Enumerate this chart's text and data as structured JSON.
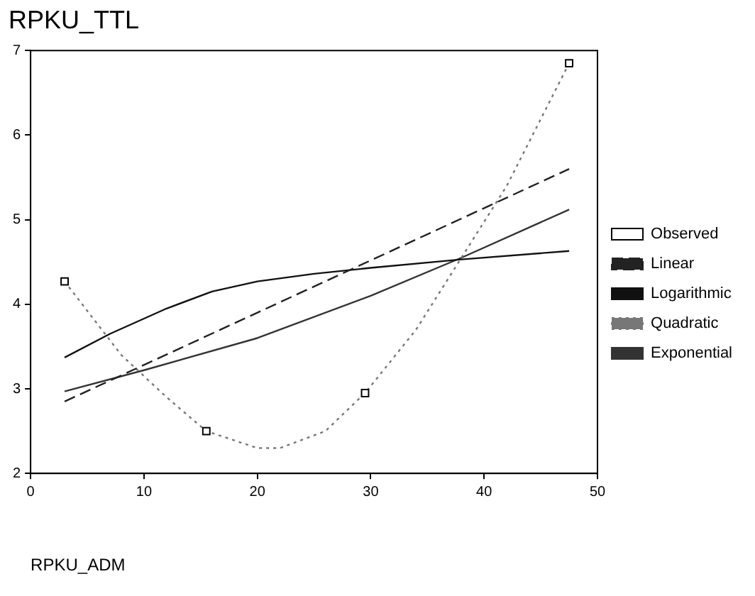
{
  "chart_data": {
    "type": "line",
    "title": "RPKU_TTL",
    "xlabel": "RPKU_ADM",
    "xlim": [
      0,
      50
    ],
    "xticks": [
      0,
      10,
      20,
      30,
      40,
      50
    ],
    "ylim": [
      2,
      7
    ],
    "yticks": [
      2,
      3,
      4,
      5,
      6,
      7
    ],
    "grid": false,
    "legend": "right",
    "series": [
      {
        "name": "Observed",
        "type": "scatter",
        "marker": "square",
        "color": "#000000",
        "x": [
          3,
          15.5,
          29.5,
          47.5
        ],
        "values": [
          4.27,
          2.5,
          2.95,
          6.85
        ]
      },
      {
        "name": "Linear",
        "type": "line",
        "marker": "none",
        "line_style": "dashed",
        "color": "#222222",
        "x": [
          3,
          47.5
        ],
        "values": [
          2.85,
          5.6
        ]
      },
      {
        "name": "Logarithmic",
        "type": "line",
        "marker": "none",
        "line_style": "solid",
        "color": "#111111",
        "x": [
          3,
          7,
          12,
          16,
          20,
          25,
          30,
          38,
          47.5
        ],
        "values": [
          3.37,
          3.65,
          3.95,
          4.15,
          4.27,
          4.36,
          4.43,
          4.53,
          4.63
        ]
      },
      {
        "name": "Quadratic",
        "type": "line",
        "marker": "none",
        "line_style": "dotted",
        "color": "#777777",
        "x": [
          3,
          8,
          12,
          15.5,
          20,
          22,
          26,
          29.5,
          34,
          38,
          42,
          47.5
        ],
        "values": [
          4.27,
          3.4,
          2.9,
          2.5,
          2.3,
          2.3,
          2.5,
          2.95,
          3.7,
          4.55,
          5.4,
          6.85
        ]
      },
      {
        "name": "Exponential",
        "type": "line",
        "marker": "none",
        "line_style": "solid",
        "color": "#333333",
        "x": [
          3,
          10,
          20,
          30,
          38,
          47.5
        ],
        "values": [
          2.97,
          3.22,
          3.6,
          4.1,
          4.55,
          5.12
        ]
      }
    ]
  }
}
